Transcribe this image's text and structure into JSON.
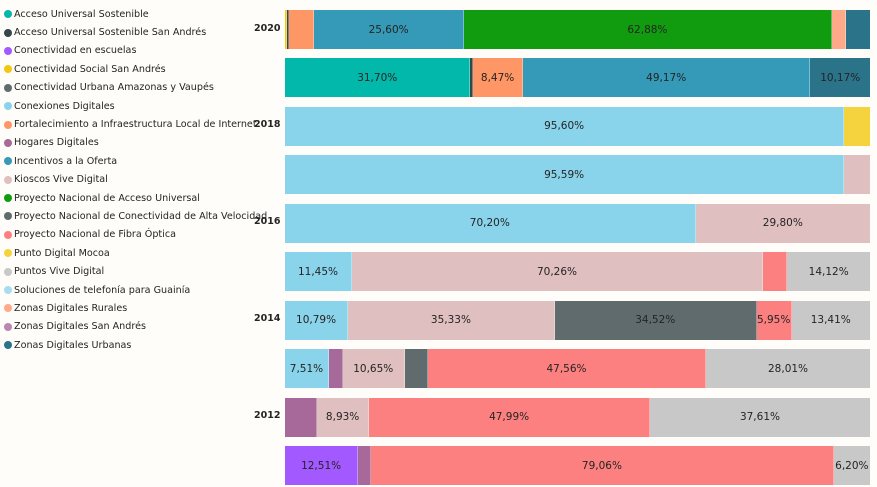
{
  "chart_data": {
    "type": "bar",
    "orientation": "horizontal",
    "stacked": "100%",
    "title": "",
    "xlabel": "",
    "ylabel": "",
    "legend_position": "left",
    "legend": [
      {
        "name": "Acceso Universal Sostenible",
        "color": "#01b8aa"
      },
      {
        "name": "Acceso Universal Sostenible San Andrés",
        "color": "#374649"
      },
      {
        "name": "Conectividad en escuelas",
        "color": "#a259ff"
      },
      {
        "name": "Conectividad Social San Andrés",
        "color": "#f2c80f"
      },
      {
        "name": "Conectividad Urbana Amazonas y Vaupés",
        "color": "#5f6b6d"
      },
      {
        "name": "Conexiones Digitales",
        "color": "#8ad4eb"
      },
      {
        "name": "Fortalecimiento a Infraestructura Local de Internet",
        "color": "#fe9666"
      },
      {
        "name": "Hogares Digitales",
        "color": "#a66999"
      },
      {
        "name": "Incentivos a la Oferta",
        "color": "#3599b8"
      },
      {
        "name": "Kioscos Vive Digital",
        "color": "#dfbfbf"
      },
      {
        "name": "Proyecto Nacional de Acceso Universal",
        "color": "#119c0f"
      },
      {
        "name": "Proyecto Nacional de Conectividad de Alta Velocidad",
        "color": "#5f6b6d"
      },
      {
        "name": "Proyecto Nacional de Fibra Óptica",
        "color": "#fd8080"
      },
      {
        "name": "Punto Digital Mocoa",
        "color": "#f5d33f"
      },
      {
        "name": "Puntos Vive Digital",
        "color": "#c8c8c8"
      },
      {
        "name": "Soluciones de telefonía para Guainía",
        "color": "#a8dcf0"
      },
      {
        "name": "Zonas Digitales Rurales",
        "color": "#fea98a"
      },
      {
        "name": "Zonas Digitales San Andrés",
        "color": "#b888b0"
      },
      {
        "name": "Zonas Digitales Urbanas",
        "color": "#2b7389"
      }
    ],
    "categories": [
      "2020",
      "",
      "2018",
      "",
      "2016",
      "",
      "2014",
      "",
      "2012",
      ""
    ],
    "rows": [
      {
        "year": "2020",
        "segments": [
          {
            "series": "Conectividad Social San Andrés",
            "value": 0.3,
            "color": "#f2c80f",
            "label": ""
          },
          {
            "series": "Acceso Universal Sostenible San Andrés",
            "value": 0.3,
            "color": "#374649",
            "label": ""
          },
          {
            "series": "Fortalecimiento a Infraestructura Local de Internet",
            "value": 4.4,
            "color": "#fe9666",
            "label": ""
          },
          {
            "series": "Incentivos a la Oferta",
            "value": 25.6,
            "color": "#3599b8",
            "label": "25,60%"
          },
          {
            "series": "Proyecto Nacional de Acceso Universal",
            "value": 62.88,
            "color": "#119c0f",
            "label": "62,88%"
          },
          {
            "series": "Zonas Digitales Rurales",
            "value": 2.4,
            "color": "#fea98a",
            "label": ""
          },
          {
            "series": "Zonas Digitales Urbanas",
            "value": 4.12,
            "color": "#2b7389",
            "label": ""
          }
        ]
      },
      {
        "year": "",
        "segments": [
          {
            "series": "Acceso Universal Sostenible",
            "value": 31.7,
            "color": "#01b8aa",
            "label": "31,70%"
          },
          {
            "series": "Acceso Universal Sostenible San Andrés",
            "value": 0.49,
            "color": "#374649",
            "label": ""
          },
          {
            "series": "Fortalecimiento a Infraestructura Local de Internet",
            "value": 8.47,
            "color": "#fe9666",
            "label": "8,47%"
          },
          {
            "series": "Incentivos a la Oferta",
            "value": 49.17,
            "color": "#3599b8",
            "label": "49,17%"
          },
          {
            "series": "Zonas Digitales Urbanas",
            "value": 10.17,
            "color": "#2b7389",
            "label": "10,17%"
          }
        ]
      },
      {
        "year": "2018",
        "segments": [
          {
            "series": "Conexiones Digitales",
            "value": 95.6,
            "color": "#8ad4eb",
            "label": "95,60%"
          },
          {
            "series": "Punto Digital Mocoa",
            "value": 4.4,
            "color": "#f5d33f",
            "label": ""
          }
        ]
      },
      {
        "year": "",
        "segments": [
          {
            "series": "Conexiones Digitales",
            "value": 95.59,
            "color": "#8ad4eb",
            "label": "95,59%"
          },
          {
            "series": "Kioscos Vive Digital",
            "value": 4.41,
            "color": "#dfbfbf",
            "label": ""
          }
        ]
      },
      {
        "year": "2016",
        "segments": [
          {
            "series": "Conexiones Digitales",
            "value": 70.2,
            "color": "#8ad4eb",
            "label": "70,20%"
          },
          {
            "series": "Kioscos Vive Digital",
            "value": 29.8,
            "color": "#dfbfbf",
            "label": "29,80%"
          }
        ]
      },
      {
        "year": "",
        "segments": [
          {
            "series": "Conexiones Digitales",
            "value": 11.45,
            "color": "#8ad4eb",
            "label": "11,45%"
          },
          {
            "series": "Kioscos Vive Digital",
            "value": 70.26,
            "color": "#dfbfbf",
            "label": "70,26%"
          },
          {
            "series": "Proyecto Nacional de Fibra Óptica",
            "value": 4.17,
            "color": "#fd8080",
            "label": ""
          },
          {
            "series": "Puntos Vive Digital",
            "value": 14.12,
            "color": "#c8c8c8",
            "label": "14,12%"
          }
        ]
      },
      {
        "year": "2014",
        "segments": [
          {
            "series": "Conexiones Digitales",
            "value": 10.79,
            "color": "#8ad4eb",
            "label": "10,79%"
          },
          {
            "series": "Kioscos Vive Digital",
            "value": 35.33,
            "color": "#dfbfbf",
            "label": "35,33%"
          },
          {
            "series": "Proyecto Nacional de Conectividad de Alta Velocidad",
            "value": 34.52,
            "color": "#5f6b6d",
            "label": "34,52%"
          },
          {
            "series": "Proyecto Nacional de Fibra Óptica",
            "value": 5.95,
            "color": "#fd8080",
            "label": "5,95%"
          },
          {
            "series": "Puntos Vive Digital",
            "value": 13.41,
            "color": "#c8c8c8",
            "label": "13,41%"
          }
        ]
      },
      {
        "year": "",
        "segments": [
          {
            "series": "Conexiones Digitales",
            "value": 7.51,
            "color": "#8ad4eb",
            "label": "7,51%"
          },
          {
            "series": "Hogares Digitales",
            "value": 2.34,
            "color": "#a66999",
            "label": ""
          },
          {
            "series": "Kioscos Vive Digital",
            "value": 10.65,
            "color": "#dfbfbf",
            "label": "10,65%"
          },
          {
            "series": "Proyecto Nacional de Conectividad de Alta Velocidad",
            "value": 3.93,
            "color": "#5f6b6d",
            "label": ""
          },
          {
            "series": "Proyecto Nacional de Fibra Óptica",
            "value": 47.56,
            "color": "#fd8080",
            "label": "47,56%"
          },
          {
            "series": "Puntos Vive Digital",
            "value": 28.01,
            "color": "#c8c8c8",
            "label": "28,01%"
          }
        ]
      },
      {
        "year": "2012",
        "segments": [
          {
            "series": "Hogares Digitales",
            "value": 5.47,
            "color": "#a66999",
            "label": ""
          },
          {
            "series": "Kioscos Vive Digital",
            "value": 8.93,
            "color": "#dfbfbf",
            "label": "8,93%"
          },
          {
            "series": "Proyecto Nacional de Fibra Óptica",
            "value": 47.99,
            "color": "#fd8080",
            "label": "47,99%"
          },
          {
            "series": "Puntos Vive Digital",
            "value": 37.61,
            "color": "#c8c8c8",
            "label": "37,61%"
          }
        ]
      },
      {
        "year": "",
        "segments": [
          {
            "series": "Conectividad en escuelas",
            "value": 12.51,
            "color": "#a259ff",
            "label": "12,51%"
          },
          {
            "series": "Hogares Digitales",
            "value": 2.23,
            "color": "#a66999",
            "label": ""
          },
          {
            "series": "Proyecto Nacional de Fibra Óptica",
            "value": 79.06,
            "color": "#fd8080",
            "label": "79,06%"
          },
          {
            "series": "Puntos Vive Digital",
            "value": 6.2,
            "color": "#c8c8c8",
            "label": "6,20%"
          }
        ]
      }
    ],
    "xlim": [
      0,
      100
    ],
    "grid": false
  }
}
